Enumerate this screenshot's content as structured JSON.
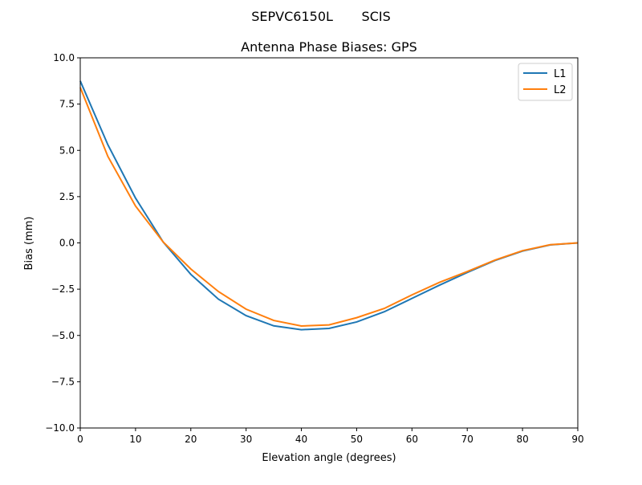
{
  "chart_data": {
    "type": "line",
    "suptitle": "SEPVC6150L       SCIS",
    "title": "Antenna Phase Biases: GPS",
    "xlabel": "Elevation angle (degrees)",
    "ylabel": "Bias (mm)",
    "xlim": [
      0,
      90
    ],
    "ylim": [
      -10,
      10
    ],
    "xticks": [
      "0",
      "10",
      "20",
      "30",
      "40",
      "50",
      "60",
      "70",
      "80",
      "90"
    ],
    "yticks": [
      "−10.0",
      "−7.5",
      "−5.0",
      "−2.5",
      "0.0",
      "2.5",
      "5.0",
      "7.5",
      "10.0"
    ],
    "grid": false,
    "legend_position": "top-right",
    "x": [
      0,
      5,
      10,
      15,
      20,
      25,
      30,
      35,
      40,
      45,
      50,
      55,
      60,
      65,
      70,
      75,
      80,
      85,
      90
    ],
    "series": [
      {
        "name": "L1",
        "color": "#1f77b4",
        "values": [
          8.75,
          5.3,
          2.42,
          0.05,
          -1.7,
          -3.04,
          -3.93,
          -4.48,
          -4.69,
          -4.62,
          -4.27,
          -3.72,
          -3.0,
          -2.28,
          -1.6,
          -0.95,
          -0.44,
          -0.11,
          0.0
        ]
      },
      {
        "name": "L2",
        "color": "#ff7f0e",
        "values": [
          8.4,
          4.67,
          1.99,
          0.05,
          -1.41,
          -2.63,
          -3.58,
          -4.19,
          -4.49,
          -4.43,
          -4.04,
          -3.54,
          -2.81,
          -2.13,
          -1.55,
          -0.93,
          -0.42,
          -0.1,
          0.0
        ]
      }
    ]
  }
}
